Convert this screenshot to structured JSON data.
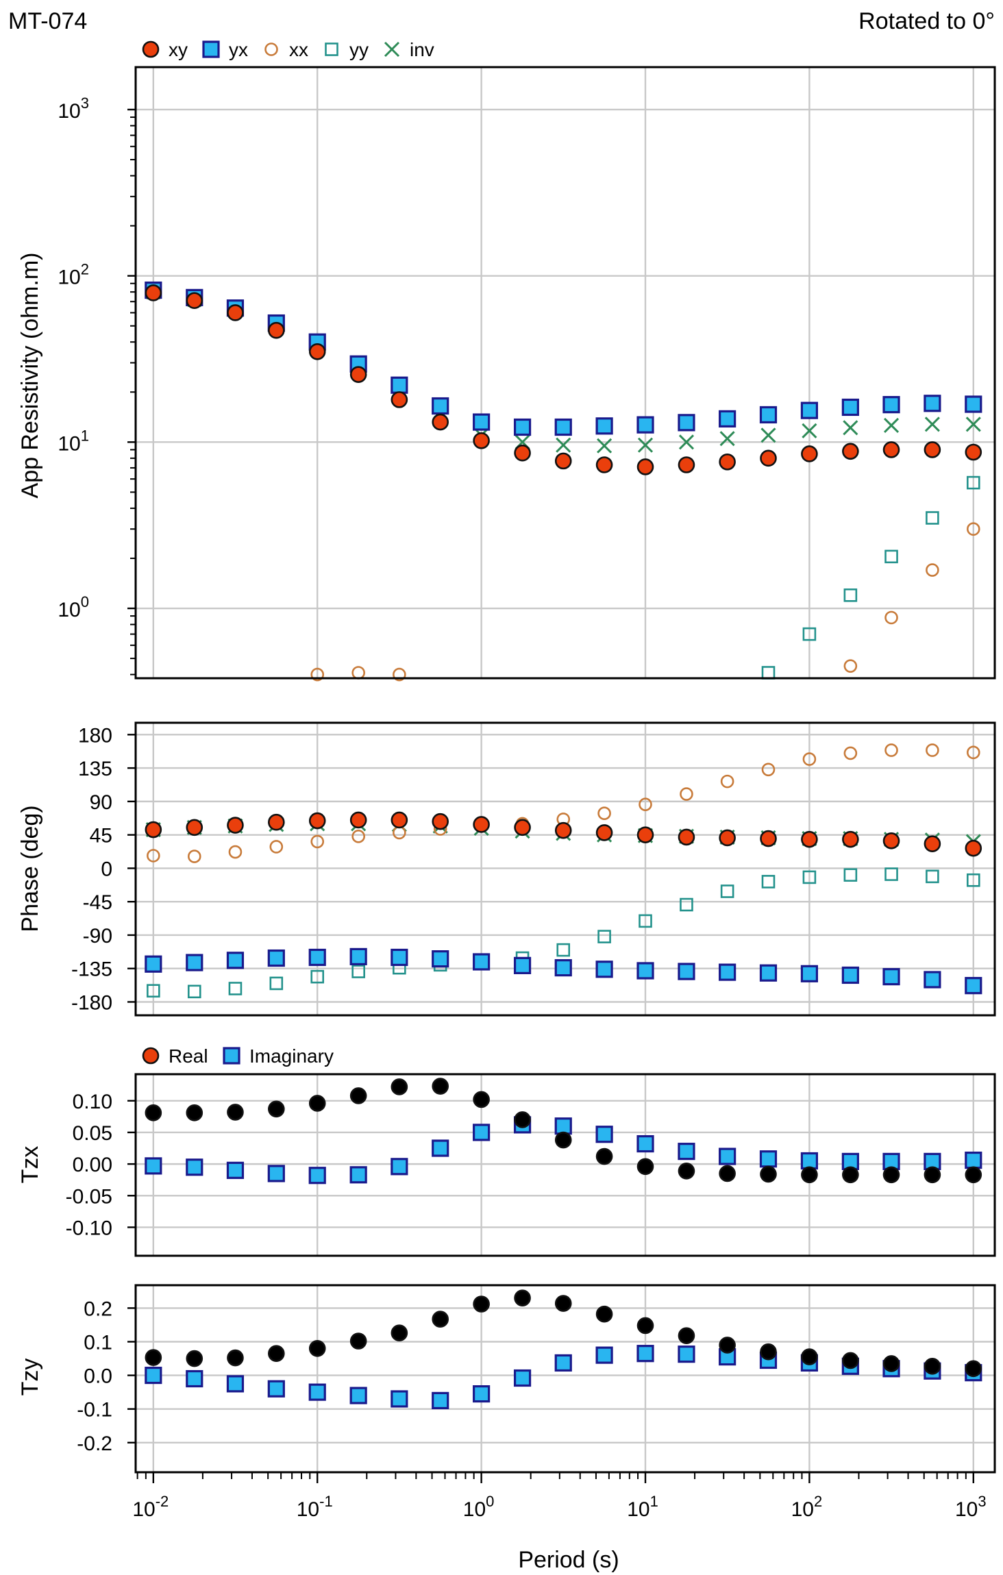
{
  "header": {
    "station": "MT-074",
    "rotation": "Rotated to 0°"
  },
  "colors": {
    "xy": "#ea3f0c",
    "yx": "#29b5f0",
    "xx": "#c87b3a",
    "yy": "#23928c",
    "inv": "#2e8b57",
    "marker_edge": "#1a1a8c",
    "grid": "#c8c8c8"
  },
  "chart_data": [
    {
      "id": "resistivity",
      "type": "scatter",
      "ylabel": "App Resistivity (ohm.m)",
      "yscale": "log",
      "xscale": "log",
      "ylim": [
        0.38,
        1800
      ],
      "xlim": [
        0.0078,
        1350
      ],
      "yticks": [
        {
          "value": 1,
          "base": "10",
          "exp": "0"
        },
        {
          "value": 10,
          "base": "10",
          "exp": "1"
        },
        {
          "value": 100,
          "base": "10",
          "exp": "2"
        },
        {
          "value": 1000,
          "base": "10",
          "exp": "3"
        }
      ],
      "legend": [
        {
          "key": "xy",
          "label": "xy",
          "marker": "circle-filled"
        },
        {
          "key": "yx",
          "label": "yx",
          "marker": "square-filled"
        },
        {
          "key": "xx",
          "label": "xx",
          "marker": "circle-open"
        },
        {
          "key": "yy",
          "label": "yy",
          "marker": "square-open"
        },
        {
          "key": "inv",
          "label": "inv",
          "marker": "cross"
        }
      ],
      "series": [
        {
          "key": "inv",
          "name": "inv",
          "marker": "cross",
          "x": [
            0.01,
            0.0178,
            0.0316,
            0.0562,
            0.1,
            0.178,
            0.316,
            0.562,
            1,
            1.78,
            3.16,
            5.62,
            10,
            17.8,
            31.6,
            56.2,
            100,
            178,
            316,
            562,
            1000
          ],
          "y": [
            80,
            72,
            62,
            50,
            38,
            27,
            20,
            14,
            11,
            10,
            9.6,
            9.5,
            9.6,
            10,
            10.5,
            11,
            11.7,
            12.2,
            12.6,
            12.8,
            12.8
          ]
        },
        {
          "key": "yy",
          "name": "yy",
          "marker": "square-open",
          "x": [
            56.2,
            100,
            178,
            316,
            562,
            1000
          ],
          "y": [
            0.41,
            0.7,
            1.2,
            2.05,
            3.5,
            5.7
          ]
        },
        {
          "key": "xx",
          "name": "xx",
          "marker": "circle-open",
          "x": [
            0.1,
            0.178,
            0.316,
            178,
            316,
            562,
            1000
          ],
          "y": [
            0.4,
            0.41,
            0.4,
            0.45,
            0.88,
            1.7,
            3.0
          ]
        },
        {
          "key": "yx",
          "name": "yx",
          "marker": "square-filled",
          "x": [
            0.01,
            0.0178,
            0.0316,
            0.0562,
            0.1,
            0.178,
            0.316,
            0.562,
            1,
            1.78,
            3.16,
            5.62,
            10,
            17.8,
            31.6,
            56.2,
            100,
            178,
            316,
            562,
            1000
          ],
          "y": [
            82,
            74,
            64,
            52,
            40,
            29.5,
            22,
            16.5,
            13.2,
            12.3,
            12.3,
            12.5,
            12.7,
            13.1,
            13.8,
            14.6,
            15.5,
            16.2,
            16.8,
            17.1,
            16.9
          ]
        },
        {
          "key": "xy",
          "name": "xy",
          "marker": "circle-filled",
          "x": [
            0.01,
            0.0178,
            0.0316,
            0.0562,
            0.1,
            0.178,
            0.316,
            0.562,
            1,
            1.78,
            3.16,
            5.62,
            10,
            17.8,
            31.6,
            56.2,
            100,
            178,
            316,
            562,
            1000
          ],
          "y": [
            79,
            71,
            60,
            47,
            35,
            25.5,
            18,
            13.2,
            10.2,
            8.6,
            7.7,
            7.3,
            7.1,
            7.3,
            7.6,
            8.0,
            8.5,
            8.8,
            9.0,
            9.0,
            8.7
          ]
        }
      ]
    },
    {
      "id": "phase",
      "type": "scatter",
      "ylabel": "Phase (deg)",
      "yscale": "linear",
      "xscale": "log",
      "ylim": [
        -198,
        196
      ],
      "xlim": [
        0.0078,
        1350
      ],
      "yticks": [
        {
          "value": 180,
          "label": "180"
        },
        {
          "value": 135,
          "label": "135"
        },
        {
          "value": 90,
          "label": "90"
        },
        {
          "value": 45,
          "label": "45"
        },
        {
          "value": 0,
          "label": "0"
        },
        {
          "value": -45,
          "label": "-45"
        },
        {
          "value": -90,
          "label": "-90"
        },
        {
          "value": -135,
          "label": "-135"
        },
        {
          "value": -180,
          "label": "-180"
        }
      ],
      "series": [
        {
          "key": "inv",
          "name": "inv",
          "marker": "cross",
          "x": [
            0.01,
            0.0178,
            0.0316,
            0.0562,
            0.1,
            0.178,
            0.316,
            0.562,
            1,
            1.78,
            3.16,
            5.62,
            10,
            17.8,
            31.6,
            56.2,
            100,
            178,
            316,
            562,
            1000
          ],
          "y": [
            52,
            55,
            57,
            59,
            60,
            60,
            59,
            57,
            54,
            50,
            47,
            45,
            44,
            43,
            42,
            41,
            40,
            40,
            39,
            38,
            36
          ]
        },
        {
          "key": "xx",
          "name": "xx",
          "marker": "circle-open",
          "x": [
            0.01,
            0.0178,
            0.0316,
            0.0562,
            0.1,
            0.178,
            0.316,
            0.562,
            1,
            1.78,
            3.16,
            5.62,
            10,
            17.8,
            31.6,
            56.2,
            100,
            178,
            316,
            562,
            1000
          ],
          "y": [
            17,
            16,
            22,
            29,
            36,
            43,
            48,
            53,
            57,
            60,
            66,
            74,
            86,
            100,
            117,
            133,
            147,
            155,
            159,
            159,
            156
          ]
        },
        {
          "key": "yy",
          "name": "yy",
          "marker": "square-open",
          "x": [
            0.01,
            0.0178,
            0.0316,
            0.0562,
            0.1,
            0.178,
            0.316,
            0.562,
            1,
            1.78,
            3.16,
            5.62,
            10,
            17.8,
            31.6,
            56.2,
            100,
            178,
            316,
            562,
            1000
          ],
          "y": [
            -165,
            -166,
            -162,
            -155,
            -146,
            -139,
            -134,
            -130,
            -127,
            -121,
            -110,
            -92,
            -71,
            -49,
            -31,
            -18,
            -12,
            -9,
            -8,
            -11,
            -16
          ]
        },
        {
          "key": "yx",
          "name": "yx",
          "marker": "square-filled",
          "x": [
            0.01,
            0.0178,
            0.0316,
            0.0562,
            0.1,
            0.178,
            0.316,
            0.562,
            1,
            1.78,
            3.16,
            5.62,
            10,
            17.8,
            31.6,
            56.2,
            100,
            178,
            316,
            562,
            1000
          ],
          "y": [
            -129,
            -127,
            -124,
            -121,
            -120,
            -119,
            -120,
            -122,
            -126,
            -131,
            -134,
            -136,
            -138,
            -139,
            -140,
            -141,
            -142,
            -144,
            -146,
            -150,
            -158
          ]
        },
        {
          "key": "xy",
          "name": "xy",
          "marker": "circle-filled",
          "x": [
            0.01,
            0.0178,
            0.0316,
            0.0562,
            0.1,
            0.178,
            0.316,
            0.562,
            1,
            1.78,
            3.16,
            5.62,
            10,
            17.8,
            31.6,
            56.2,
            100,
            178,
            316,
            562,
            1000
          ],
          "y": [
            52,
            55,
            58,
            62,
            64,
            65,
            65,
            63,
            59,
            55,
            51,
            48,
            45,
            42,
            41,
            40,
            39,
            39,
            37,
            33,
            27
          ]
        }
      ]
    },
    {
      "id": "tzx",
      "type": "scatter",
      "ylabel": "Tzx",
      "yscale": "linear",
      "xscale": "log",
      "ylim": [
        -0.145,
        0.142
      ],
      "xlim": [
        0.0078,
        1350
      ],
      "yticks": [
        {
          "value": 0.1,
          "label": "0.10"
        },
        {
          "value": 0.05,
          "label": "0.05"
        },
        {
          "value": 0,
          "label": "0.00"
        },
        {
          "value": -0.05,
          "label": "-0.05"
        },
        {
          "value": -0.1,
          "label": "-0.10"
        }
      ],
      "legend": [
        {
          "key": "real",
          "label": "Real",
          "marker": "circle-filled"
        },
        {
          "key": "imag",
          "label": "Imaginary",
          "marker": "square-filled"
        }
      ],
      "series": [
        {
          "key": "imag",
          "name": "Imaginary",
          "marker": "square-filled",
          "x": [
            0.01,
            0.0178,
            0.0316,
            0.0562,
            0.1,
            0.178,
            0.316,
            0.562,
            1,
            1.78,
            3.16,
            5.62,
            10,
            17.8,
            31.6,
            56.2,
            100,
            178,
            316,
            562,
            1000
          ],
          "y": [
            -0.003,
            -0.005,
            -0.01,
            -0.015,
            -0.018,
            -0.017,
            -0.004,
            0.025,
            0.05,
            0.062,
            0.06,
            0.047,
            0.032,
            0.02,
            0.012,
            0.008,
            0.005,
            0.004,
            0.004,
            0.004,
            0.006
          ]
        },
        {
          "key": "real",
          "name": "Real",
          "marker": "circle-filled",
          "x": [
            0.01,
            0.0178,
            0.0316,
            0.0562,
            0.1,
            0.178,
            0.316,
            0.562,
            1,
            1.78,
            3.16,
            5.62,
            10,
            17.8,
            31.6,
            56.2,
            100,
            178,
            316,
            562,
            1000
          ],
          "y": [
            0.081,
            0.081,
            0.082,
            0.087,
            0.096,
            0.108,
            0.122,
            0.123,
            0.102,
            0.07,
            0.038,
            0.012,
            -0.004,
            -0.011,
            -0.015,
            -0.016,
            -0.017,
            -0.017,
            -0.017,
            -0.017,
            -0.017
          ]
        }
      ]
    },
    {
      "id": "tzy",
      "type": "scatter",
      "ylabel": "Tzy",
      "yscale": "linear",
      "xscale": "log",
      "xlabel": "Period (s)",
      "ylim": [
        -0.288,
        0.268
      ],
      "xlim": [
        0.0078,
        1350
      ],
      "yticks": [
        {
          "value": 0.2,
          "label": "0.2"
        },
        {
          "value": 0.1,
          "label": "0.1"
        },
        {
          "value": 0,
          "label": "0.0"
        },
        {
          "value": -0.1,
          "label": "-0.1"
        },
        {
          "value": -0.2,
          "label": "-0.2"
        }
      ],
      "xticks": [
        {
          "value": 0.01,
          "base": "10",
          "exp": "-2"
        },
        {
          "value": 0.1,
          "base": "10",
          "exp": "-1"
        },
        {
          "value": 1,
          "base": "10",
          "exp": "0"
        },
        {
          "value": 10,
          "base": "10",
          "exp": "1"
        },
        {
          "value": 100,
          "base": "10",
          "exp": "2"
        },
        {
          "value": 1000,
          "base": "10",
          "exp": "3"
        }
      ],
      "series": [
        {
          "key": "imag",
          "name": "Imaginary",
          "marker": "square-filled",
          "x": [
            0.01,
            0.0178,
            0.0316,
            0.0562,
            0.1,
            0.178,
            0.316,
            0.562,
            1,
            1.78,
            3.16,
            5.62,
            10,
            17.8,
            31.6,
            56.2,
            100,
            178,
            316,
            562,
            1000
          ],
          "y": [
            0.0,
            -0.01,
            -0.025,
            -0.04,
            -0.05,
            -0.06,
            -0.07,
            -0.075,
            -0.055,
            -0.008,
            0.037,
            0.06,
            0.065,
            0.063,
            0.055,
            0.045,
            0.037,
            0.027,
            0.02,
            0.013,
            0.008
          ]
        },
        {
          "key": "real",
          "name": "Real",
          "marker": "circle-filled",
          "x": [
            0.01,
            0.0178,
            0.0316,
            0.0562,
            0.1,
            0.178,
            0.316,
            0.562,
            1,
            1.78,
            3.16,
            5.62,
            10,
            17.8,
            31.6,
            56.2,
            100,
            178,
            316,
            562,
            1000
          ],
          "y": [
            0.053,
            0.05,
            0.052,
            0.065,
            0.08,
            0.102,
            0.126,
            0.167,
            0.212,
            0.23,
            0.214,
            0.182,
            0.148,
            0.118,
            0.09,
            0.07,
            0.055,
            0.044,
            0.035,
            0.027,
            0.02
          ]
        }
      ]
    }
  ]
}
